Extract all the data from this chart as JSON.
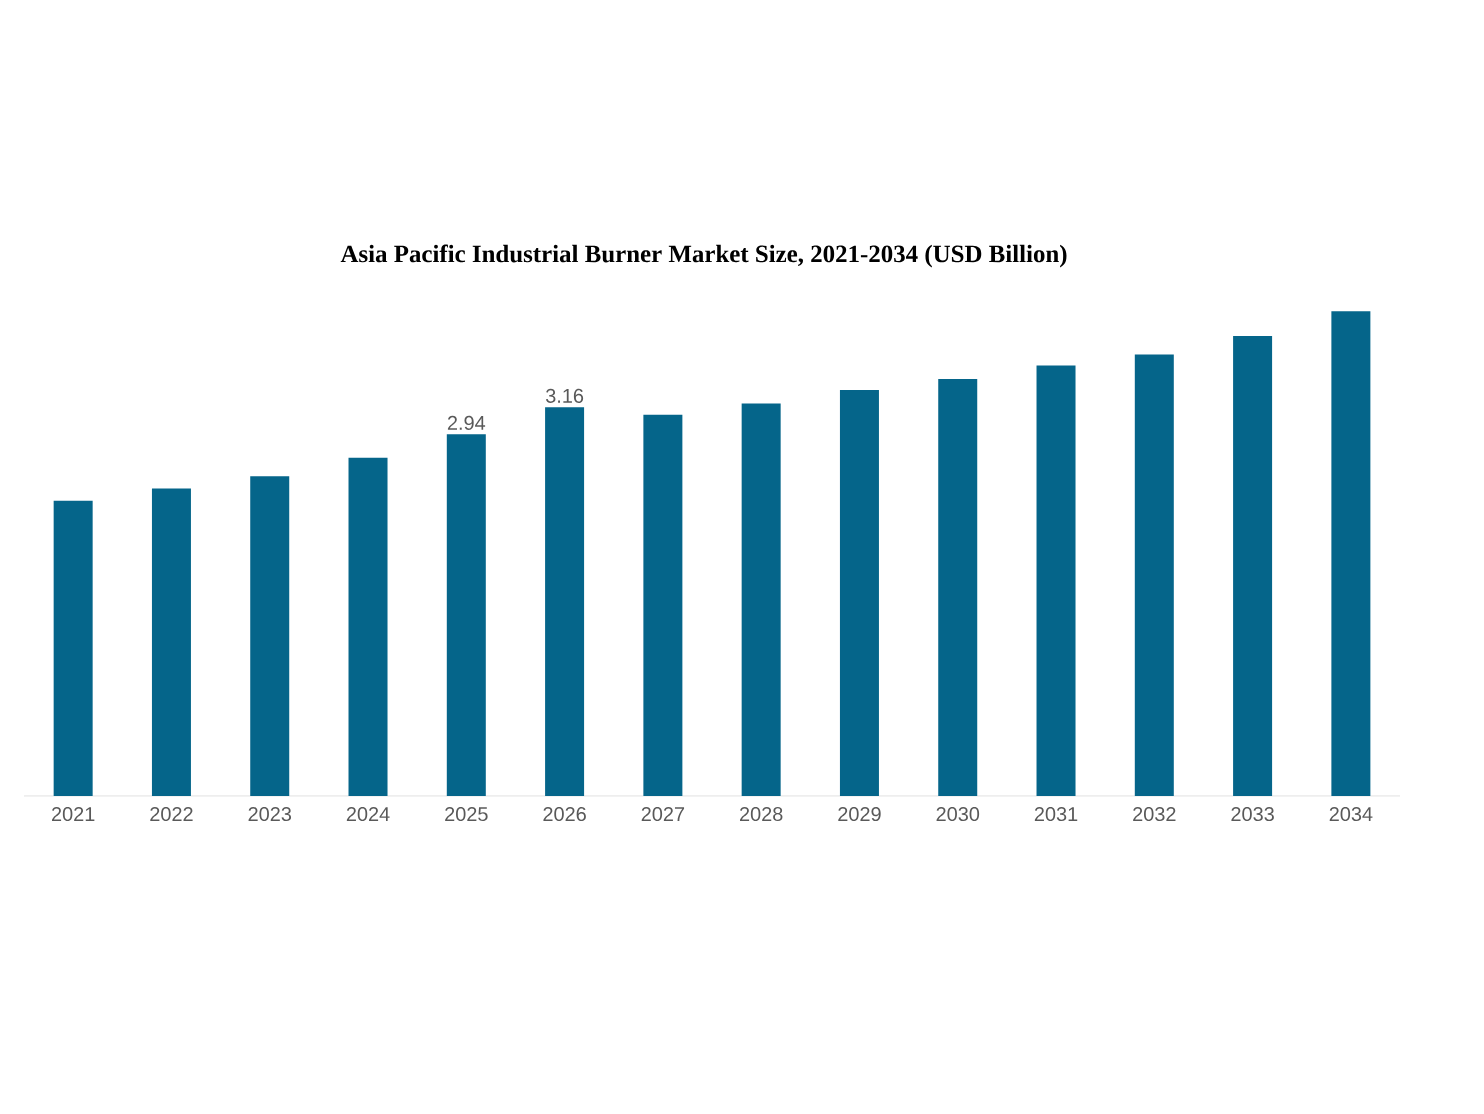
{
  "chart_data": {
    "type": "bar",
    "title": "Asia Pacific Industrial Burner Market Size, 2021-2034 (USD Billion)",
    "categories": [
      "2021",
      "2022",
      "2023",
      "2024",
      "2025",
      "2026",
      "2027",
      "2028",
      "2029",
      "2030",
      "2031",
      "2032",
      "2033",
      "2034"
    ],
    "values": [
      2.4,
      2.5,
      2.6,
      2.75,
      2.94,
      3.16,
      3.1,
      3.19,
      3.3,
      3.39,
      3.5,
      3.59,
      3.74,
      3.94
    ],
    "value_labels": [
      null,
      null,
      null,
      null,
      "2.94",
      "3.16",
      null,
      null,
      null,
      null,
      null,
      null,
      null,
      null
    ],
    "color": "#05658a"
  }
}
